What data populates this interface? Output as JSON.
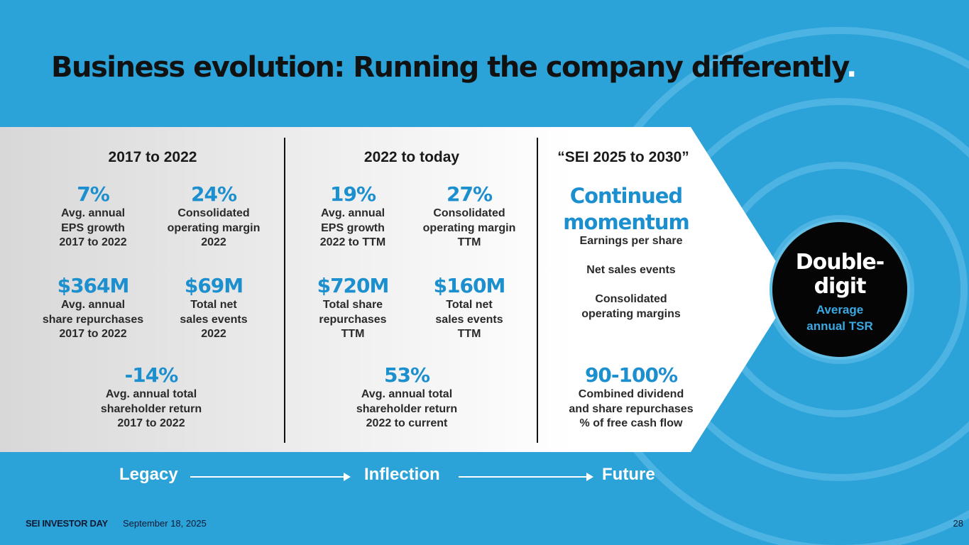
{
  "slide": {
    "title": "Business evolution: Running the company differently",
    "title_dot": ".",
    "accent_color": "#2ba2d8",
    "stat_color": "#1c8fcf"
  },
  "legacy": {
    "heading": "2017 to 2022",
    "stats": [
      {
        "value": "7%",
        "label": "Avg. annual\nEPS growth\n2017 to 2022"
      },
      {
        "value": "24%",
        "label": "Consolidated\noperating margin\n2022"
      },
      {
        "value": "$364M",
        "label": "Avg. annual\nshare repurchases\n2017 to 2022"
      },
      {
        "value": "$69M",
        "label": "Total net\nsales events\n2022"
      },
      {
        "value": "-14%",
        "label": "Avg. annual total\nshareholder return\n2017 to 2022"
      }
    ]
  },
  "inflection": {
    "heading": "2022 to today",
    "stats": [
      {
        "value": "19%",
        "label": "Avg. annual\nEPS growth\n2022 to TTM"
      },
      {
        "value": "27%",
        "label": "Consolidated\noperating margin\nTTM"
      },
      {
        "value": "$720M",
        "label": "Total share\nrepurchases\nTTM"
      },
      {
        "value": "$160M",
        "label": "Total net\nsales events\nTTM"
      },
      {
        "value": "53%",
        "label": "Avg. annual total\nshareholder return\n2022 to current"
      }
    ]
  },
  "future": {
    "heading": "“SEI 2025 to 2030”",
    "big": "Continued\nmomentum",
    "items": [
      "Earnings per share",
      "Net sales events",
      "Consolidated\noperating margins"
    ],
    "stat": {
      "value": "90-100%",
      "label": "Combined dividend\nand share repurchases\n% of free cash flow"
    }
  },
  "target": {
    "headline": "Double-\ndigit",
    "sub": "Average\nannual TSR"
  },
  "flow": {
    "legacy": "Legacy",
    "inflection": "Inflection",
    "future": "Future"
  },
  "footer": {
    "brand": "SEI INVESTOR DAY",
    "date": "September 18, 2025",
    "page": "28"
  }
}
